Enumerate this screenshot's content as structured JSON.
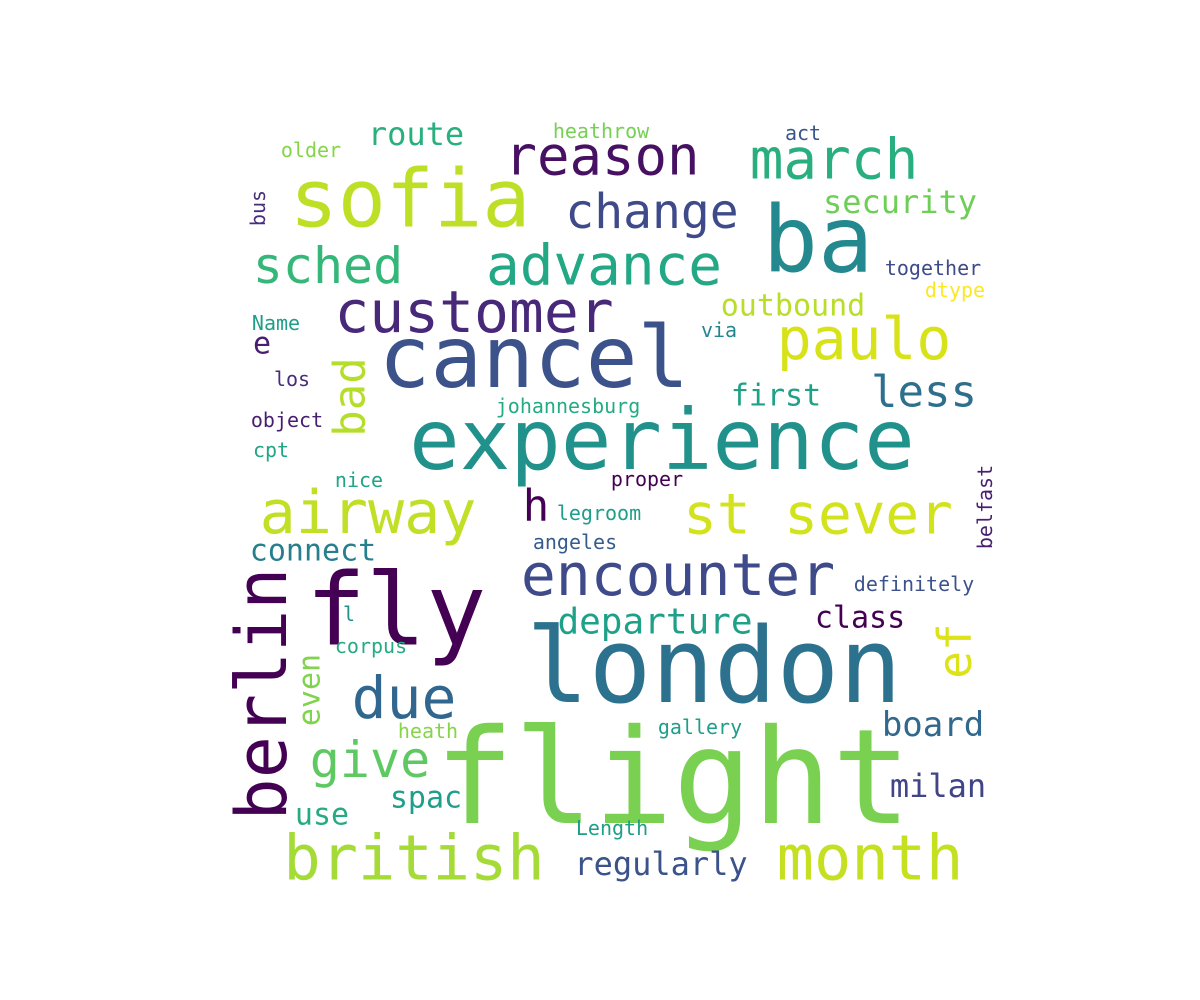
{
  "words": [
    {
      "text": "flight",
      "color": "#7ad151"
    },
    {
      "text": "london",
      "color": "#2c728e"
    },
    {
      "text": "fly",
      "color": "#440154"
    },
    {
      "text": "experience",
      "color": "#21918c"
    },
    {
      "text": "cancel",
      "color": "#3b528b"
    },
    {
      "text": "ba",
      "color": "#23898e"
    },
    {
      "text": "sofia",
      "color": "#bddf26"
    },
    {
      "text": "berlin",
      "color": "#440154"
    },
    {
      "text": "british",
      "color": "#a5db36"
    },
    {
      "text": "month",
      "color": "#c5e021"
    },
    {
      "text": "airway",
      "color": "#c0df25"
    },
    {
      "text": "st sever",
      "color": "#d2e21b"
    },
    {
      "text": "encounter",
      "color": "#3e4a89"
    },
    {
      "text": "customer",
      "color": "#482878"
    },
    {
      "text": "advance",
      "color": "#22a884"
    },
    {
      "text": "paulo",
      "color": "#d8e219"
    },
    {
      "text": "march",
      "color": "#29af7f"
    },
    {
      "text": "reason",
      "color": "#471063"
    },
    {
      "text": "change",
      "color": "#3e4a89"
    },
    {
      "text": "sched",
      "color": "#35b779"
    },
    {
      "text": "due",
      "color": "#31668e"
    },
    {
      "text": "bad",
      "color": "#b5de2b"
    },
    {
      "text": "ef",
      "color": "#dde318"
    },
    {
      "text": "give",
      "color": "#5ec962"
    },
    {
      "text": "less",
      "color": "#2e6f8e"
    },
    {
      "text": "h",
      "color": "#440154"
    },
    {
      "text": "departure",
      "color": "#1fa088"
    },
    {
      "text": "board",
      "color": "#31688e"
    },
    {
      "text": "regularly",
      "color": "#3b528b"
    },
    {
      "text": "milan",
      "color": "#414487"
    },
    {
      "text": "route",
      "color": "#2ab07f"
    },
    {
      "text": "security",
      "color": "#6ece58"
    },
    {
      "text": "outbound",
      "color": "#b8de29"
    },
    {
      "text": "connect",
      "color": "#277f8e"
    },
    {
      "text": "first",
      "color": "#1fa187"
    },
    {
      "text": "class",
      "color": "#440154"
    },
    {
      "text": "spac",
      "color": "#1f9e89"
    },
    {
      "text": "use",
      "color": "#25ab82"
    },
    {
      "text": "even",
      "color": "#7fd34e"
    },
    {
      "text": "together",
      "color": "#3e4a89"
    },
    {
      "text": "johannesburg",
      "color": "#25ab82"
    },
    {
      "text": "definitely",
      "color": "#3b528b"
    },
    {
      "text": "heathrow",
      "color": "#75d054"
    },
    {
      "text": "dtype",
      "color": "#fde725"
    },
    {
      "text": "proper",
      "color": "#440154"
    },
    {
      "text": "gallery",
      "color": "#1f9e89"
    },
    {
      "text": "legroom",
      "color": "#1f9e89"
    },
    {
      "text": "angeles",
      "color": "#365c8d"
    },
    {
      "text": "belfast",
      "color": "#481f70"
    },
    {
      "text": "Length",
      "color": "#1f9e89"
    },
    {
      "text": "act",
      "color": "#39568c"
    },
    {
      "text": "older",
      "color": "#86d549"
    },
    {
      "text": "Name",
      "color": "#1f9e89"
    },
    {
      "text": "object",
      "color": "#481f70"
    },
    {
      "text": "heath",
      "color": "#86d549"
    },
    {
      "text": "corpus",
      "color": "#25ab82"
    },
    {
      "text": "cpt",
      "color": "#21a685"
    },
    {
      "text": "nice",
      "color": "#20a386"
    },
    {
      "text": "via",
      "color": "#23888e"
    },
    {
      "text": "los",
      "color": "#472d7b"
    },
    {
      "text": "bus",
      "color": "#472d7b"
    },
    {
      "text": "e",
      "color": "#481f70"
    },
    {
      "text": "l",
      "color": "#21918c"
    }
  ]
}
